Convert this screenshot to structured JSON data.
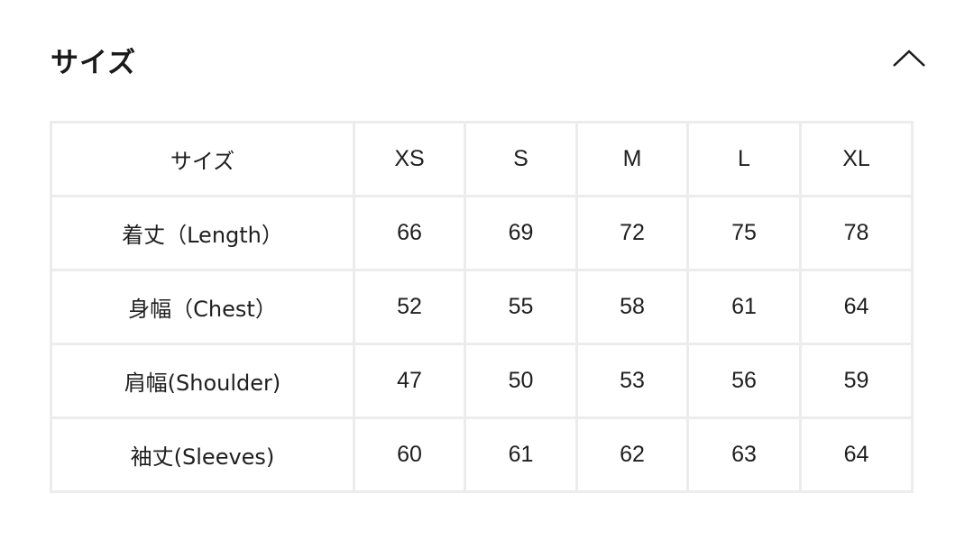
{
  "section": {
    "title": "サイズ",
    "toggle_icon": "chevron-up-icon",
    "expanded": true
  },
  "table": {
    "header": [
      "サイズ",
      "XS",
      "S",
      "M",
      "L",
      "XL"
    ],
    "rows": [
      [
        "着丈（Length）",
        "66",
        "69",
        "72",
        "75",
        "78"
      ],
      [
        "身幅（Chest）",
        "52",
        "55",
        "58",
        "61",
        "64"
      ],
      [
        "肩幅(Shoulder)",
        "47",
        "50",
        "53",
        "56",
        "59"
      ],
      [
        "袖丈(Sleeves)",
        "60",
        "61",
        "62",
        "63",
        "64"
      ]
    ]
  },
  "colors": {
    "border": "#ececec",
    "text": "#1a1a1a"
  }
}
